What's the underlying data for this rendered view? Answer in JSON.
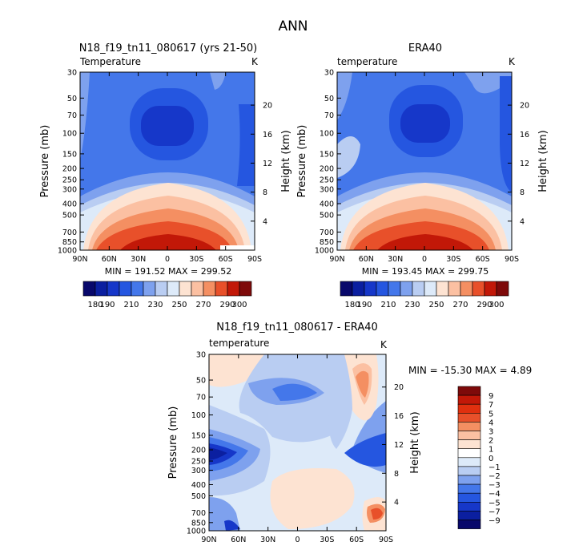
{
  "figure_title": "ANN",
  "chart_data": [
    {
      "type": "contour",
      "title": "N18_f19_tn11_080617 (yrs 21-50)",
      "left_label": "Temperature",
      "units": "K",
      "ylabel": "Pressure (mb)",
      "ylabel_right": "Height (km)",
      "x_ticks": [
        "90N",
        "60N",
        "30N",
        "0",
        "30S",
        "60S",
        "90S"
      ],
      "y_ticks": [
        30,
        50,
        70,
        100,
        150,
        200,
        250,
        300,
        400,
        500,
        700,
        850,
        1000
      ],
      "height_ticks": [
        4,
        8,
        12,
        16,
        20
      ],
      "min_max_text": "MIN = 191.52   MAX = 299.52",
      "levels": [
        "180",
        "190",
        "200",
        "210",
        "220",
        "230",
        "240",
        "250",
        "260",
        "270",
        "280",
        "290",
        "300"
      ],
      "colorbar_labels": [
        "180",
        "190",
        "210",
        "230",
        "250",
        "270",
        "290",
        "300"
      ]
    },
    {
      "type": "contour",
      "title": "ERA40",
      "left_label": "temperature",
      "units": "K",
      "ylabel": "Pressure (mb)",
      "ylabel_right": "Height (km)",
      "x_ticks": [
        "90N",
        "60N",
        "30N",
        "0",
        "30S",
        "60S",
        "90S"
      ],
      "y_ticks": [
        30,
        50,
        70,
        100,
        150,
        200,
        250,
        300,
        400,
        500,
        700,
        850,
        1000
      ],
      "height_ticks": [
        4,
        8,
        12,
        16,
        20
      ],
      "min_max_text": "MIN = 193.45   MAX = 299.75",
      "levels": [
        "180",
        "190",
        "200",
        "210",
        "220",
        "230",
        "240",
        "250",
        "260",
        "270",
        "280",
        "290",
        "300"
      ],
      "colorbar_labels": [
        "180",
        "190",
        "210",
        "230",
        "250",
        "270",
        "290",
        "300"
      ]
    },
    {
      "type": "contour",
      "title": "N18_f19_tn11_080617 - ERA40",
      "left_label": "temperature",
      "units": "K",
      "ylabel": "Pressure (mb)",
      "ylabel_right": "Height (km)",
      "x_ticks": [
        "90N",
        "60N",
        "30N",
        "0",
        "30S",
        "60S",
        "90S"
      ],
      "y_ticks": [
        30,
        50,
        70,
        100,
        150,
        200,
        250,
        300,
        400,
        500,
        700,
        850,
        1000
      ],
      "height_ticks": [
        4,
        8,
        12,
        16,
        20
      ],
      "min_max_text": "MIN = -15.30  MAX =    4.89",
      "colorbar_labels": [
        "9",
        "7",
        "5",
        "4",
        "3",
        "2",
        "1",
        "0",
        "-1",
        "-2",
        "-3",
        "-4",
        "-5",
        "-7",
        "-9"
      ]
    }
  ],
  "colors": {
    "c180": "#08086b",
    "c190": "#0b1fa0",
    "c200": "#1637c9",
    "c210": "#2556e0",
    "c220": "#4477ea",
    "c230": "#7ea1ee",
    "c240": "#b9cdf2",
    "c250": "#ddeaf9",
    "c260": "#fde3d2",
    "c270": "#fbc0a2",
    "c280": "#f48f62",
    "c290": "#e8502a",
    "c300": "#c21808",
    "c310": "#7e0a0a"
  }
}
